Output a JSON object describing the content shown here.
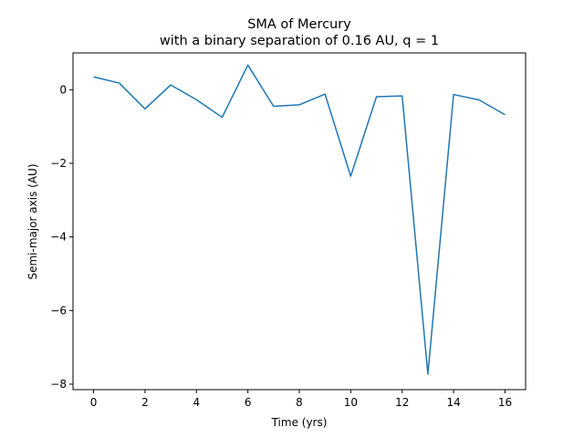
{
  "chart_data": {
    "type": "line",
    "title_line1": "SMA of Mercury",
    "title_line2": "with a binary separation of 0.16 AU, q = 1",
    "xlabel": "Time (yrs)",
    "ylabel": "Semi-major axis (AU)",
    "xlim": [
      -0.8,
      16.8
    ],
    "ylim": [
      -8.15,
      1.0
    ],
    "xticks": [
      0,
      2,
      4,
      6,
      8,
      10,
      12,
      14,
      16
    ],
    "xtick_labels": [
      "0",
      "2",
      "4",
      "6",
      "8",
      "10",
      "12",
      "14",
      "16"
    ],
    "yticks": [
      0,
      -2,
      -4,
      -6,
      -8
    ],
    "ytick_labels": [
      "0",
      "−2",
      "−4",
      "−6",
      "−8"
    ],
    "grid": false,
    "series": [
      {
        "name": "Mercury SMA",
        "color": "#1f77b4",
        "x": [
          0,
          1,
          2,
          3,
          4,
          5,
          6,
          7,
          8,
          9,
          10,
          11,
          12,
          13,
          14,
          15,
          16
        ],
        "y": [
          0.35,
          0.18,
          -0.52,
          0.13,
          -0.27,
          -0.75,
          0.67,
          -0.45,
          -0.41,
          -0.12,
          -2.35,
          -0.19,
          -0.17,
          -7.73,
          -0.13,
          -0.28,
          -0.68
        ]
      }
    ]
  }
}
